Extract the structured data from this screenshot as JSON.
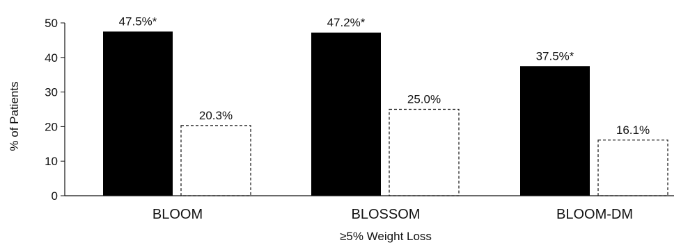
{
  "chart_data": {
    "type": "bar",
    "categories": [
      "BLOOM",
      "BLOSSOM",
      "BLOOM-DM"
    ],
    "series": [
      {
        "values": [
          47.5,
          47.2,
          37.5
        ],
        "labels": [
          "47.5%*",
          "47.2%*",
          "37.5%*"
        ],
        "color": "#000000",
        "style": "solid"
      },
      {
        "values": [
          20.3,
          25.0,
          16.1
        ],
        "labels": [
          "20.3%",
          "25.0%",
          "16.1%"
        ],
        "color": "#ffffff",
        "style": "dashed-outline"
      }
    ],
    "xlabel": "≥5% Weight Loss",
    "ylabel": "% of Patients",
    "ylim": [
      0,
      50
    ],
    "yticks": [
      0,
      10,
      20,
      30,
      40,
      50
    ],
    "grid": false,
    "legend": "none"
  }
}
